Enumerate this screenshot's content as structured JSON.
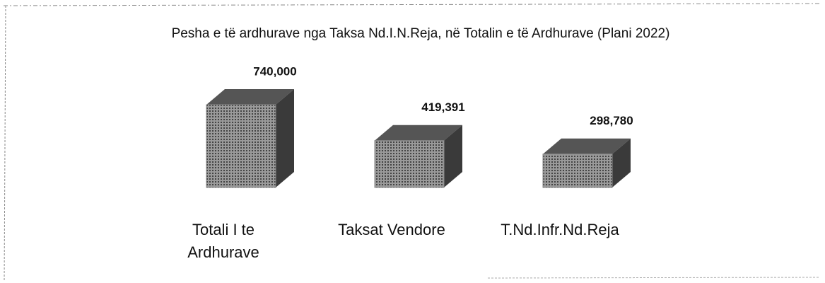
{
  "chart_data": {
    "type": "bar3d",
    "title": "Pesha e të ardhurave nga Taksa Nd.I.N.Reja, në Totalin e të Ardhurave (Plani 2022)",
    "categories": [
      "Totali I te Ardhurave",
      "Taksat Vendore",
      "T.Nd.Infr.Nd.Reja"
    ],
    "values": [
      740000,
      419391,
      298780
    ],
    "value_labels": [
      "740,000",
      "419,391",
      "298,780"
    ],
    "color": "#8a8a8a"
  }
}
